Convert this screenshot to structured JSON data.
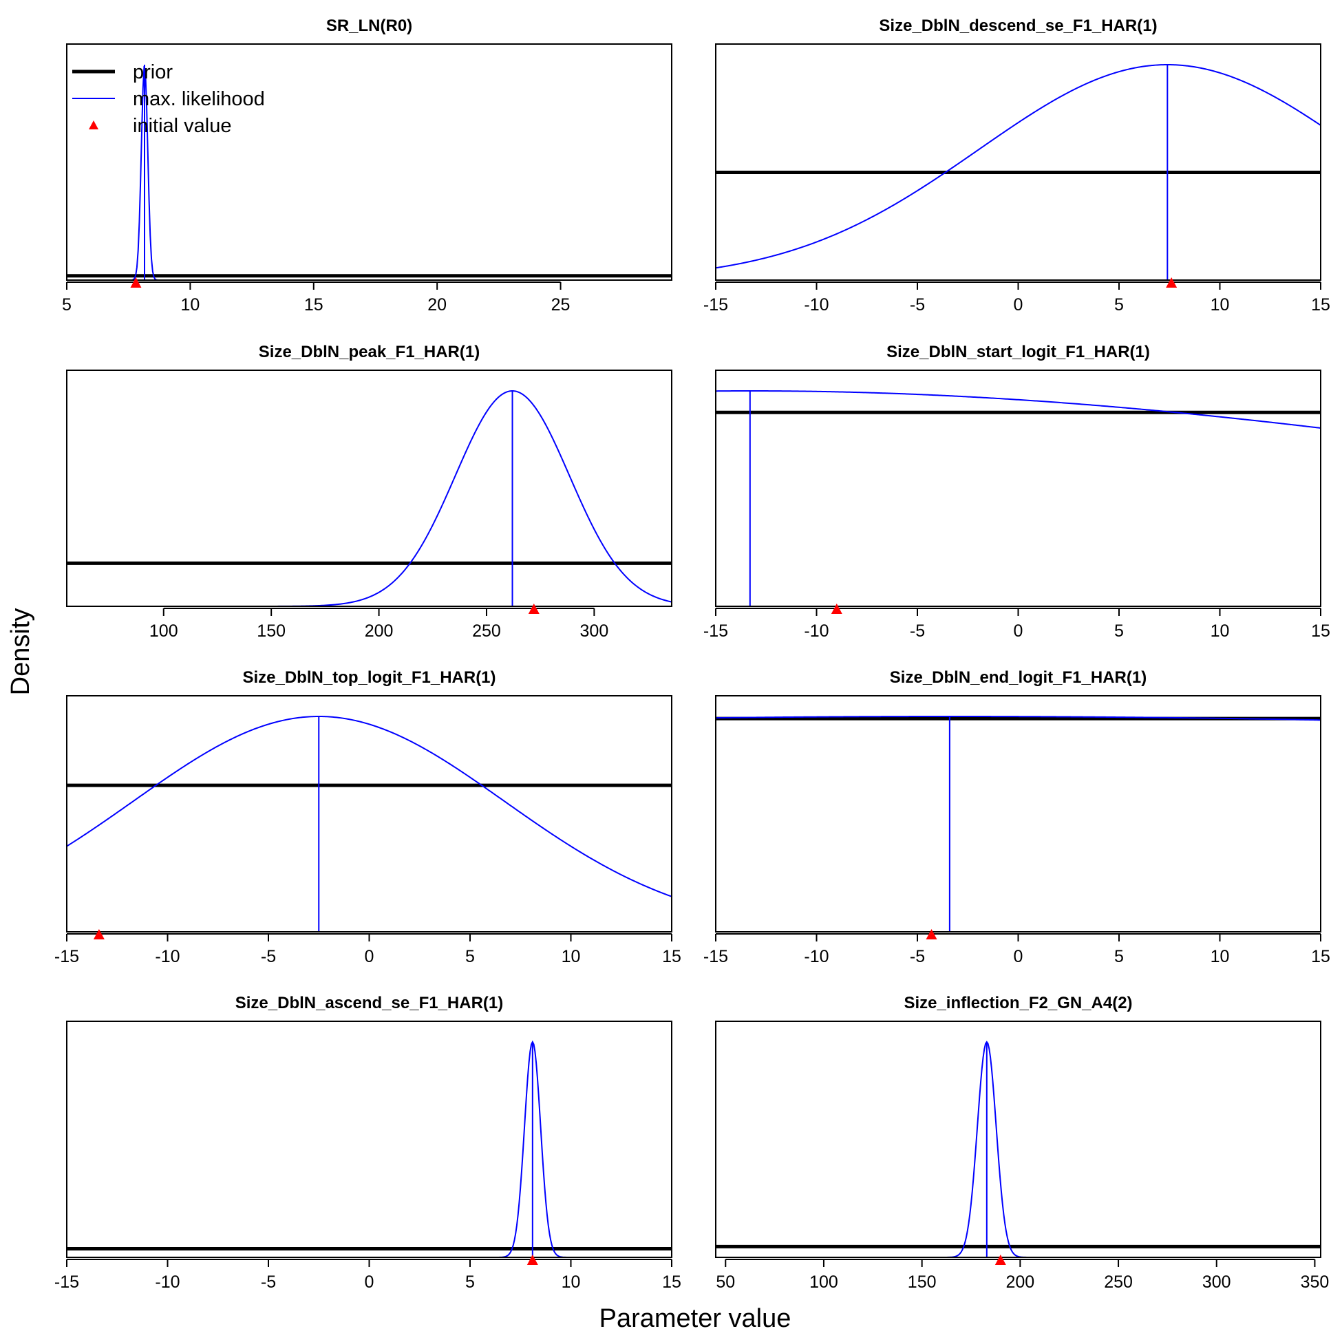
{
  "figure": {
    "xlabel": "Parameter value",
    "ylabel": "Density"
  },
  "legend": {
    "placement": "top-left of first panel",
    "items": [
      {
        "label": "prior",
        "kind": "line-thick",
        "color": "#000000"
      },
      {
        "label": "max. likelihood",
        "kind": "line-thin",
        "color": "#0000FF"
      },
      {
        "label": "initial value",
        "kind": "triangle",
        "color": "#FF0000"
      }
    ]
  },
  "colors": {
    "prior": "#000000",
    "mle": "#0000FF",
    "initial": "#FF0000"
  },
  "chart_data": [
    {
      "type": "line",
      "title": "SR_LN(R0)",
      "xlim": [
        5,
        29.5
      ],
      "xticks": [
        5,
        10,
        15,
        20,
        25
      ],
      "ylim": [
        0,
        1
      ],
      "prior_density": 0.02,
      "mle": {
        "mean": 8.15,
        "sd": 0.13
      },
      "initial_value": 7.8
    },
    {
      "type": "line",
      "title": "Size_DblN_descend_se_F1_HAR(1)",
      "xlim": [
        -15,
        15
      ],
      "xticks": [
        -15,
        -10,
        -5,
        0,
        5,
        10,
        15
      ],
      "ylim": [
        0,
        1
      ],
      "prior_density": 0.5,
      "mle": {
        "mean": 7.4,
        "sd": 9.35
      },
      "initial_value": 7.6
    },
    {
      "type": "line",
      "title": "Size_DblN_peak_F1_HAR(1)",
      "xlim": [
        55,
        336
      ],
      "xticks": [
        100,
        150,
        200,
        250,
        300
      ],
      "ylim": [
        0,
        1
      ],
      "prior_density": 0.2,
      "mle": {
        "mean": 262,
        "sd": 26.5
      },
      "initial_value": 272
    },
    {
      "type": "line",
      "title": "Size_DblN_start_logit_F1_HAR(1)",
      "xlim": [
        -15,
        15
      ],
      "xticks": [
        -15,
        -10,
        -5,
        0,
        5,
        10,
        15
      ],
      "ylim": [
        0,
        1
      ],
      "prior_density": 0.9,
      "mle": {
        "mean": -13.3,
        "sd": 46
      },
      "initial_value": -9
    },
    {
      "type": "line",
      "title": "Size_DblN_top_logit_F1_HAR(1)",
      "xlim": [
        -15,
        15
      ],
      "xticks": [
        -15,
        -10,
        -5,
        0,
        5,
        10,
        15
      ],
      "ylim": [
        0,
        1
      ],
      "prior_density": 0.68,
      "mle": {
        "mean": -2.5,
        "sd": 9.2
      },
      "initial_value": -13.4
    },
    {
      "type": "line",
      "title": "Size_DblN_end_logit_F1_HAR(1)",
      "xlim": [
        -15,
        15
      ],
      "xticks": [
        -15,
        -10,
        -5,
        0,
        5,
        10,
        15
      ],
      "ylim": [
        0,
        1
      ],
      "prior_density": 0.99,
      "mle": {
        "mean": -3.4,
        "sd": 100
      },
      "initial_value": -4.3
    },
    {
      "type": "line",
      "title": "Size_DblN_ascend_se_F1_HAR(1)",
      "xlim": [
        -15,
        15
      ],
      "xticks": [
        -15,
        -10,
        -5,
        0,
        5,
        10,
        15
      ],
      "ylim": [
        0,
        1
      ],
      "prior_density": 0.04,
      "mle": {
        "mean": 8.1,
        "sd": 0.4
      },
      "initial_value": 8.1
    },
    {
      "type": "line",
      "title": "Size_inflection_F2_GN_A4(2)",
      "xlim": [
        45,
        353
      ],
      "xticks": [
        50,
        100,
        150,
        200,
        250,
        300,
        350
      ],
      "ylim": [
        0,
        1
      ],
      "prior_density": 0.05,
      "mle": {
        "mean": 183,
        "sd": 4.8
      },
      "initial_value": 190
    }
  ]
}
